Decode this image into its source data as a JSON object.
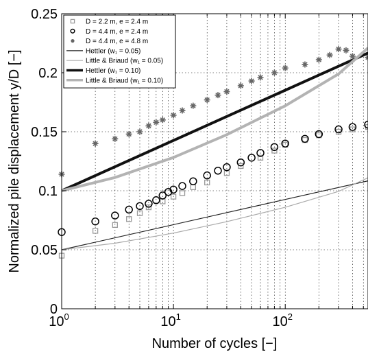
{
  "chart_data": {
    "type": "scatter",
    "xlabel": "Number of cycles [−]",
    "ylabel": "Normalized pile displacement y/D [−]",
    "xscale": "log",
    "xlim": [
      1,
      550
    ],
    "ylim": [
      0,
      0.25
    ],
    "grid": true,
    "legend_position": "top-left",
    "x_ticks": [
      {
        "value": 1,
        "base": "10",
        "exp": "0"
      },
      {
        "value": 10,
        "base": "10",
        "exp": "1"
      },
      {
        "value": 100,
        "base": "10",
        "exp": "2"
      }
    ],
    "y_ticks": [
      {
        "value": 0,
        "label": "0"
      },
      {
        "value": 0.05,
        "label": "0.05"
      },
      {
        "value": 0.1,
        "label": "0.1"
      },
      {
        "value": 0.15,
        "label": "0.15"
      },
      {
        "value": 0.2,
        "label": "0.2"
      },
      {
        "value": 0.25,
        "label": "0.25"
      }
    ],
    "series": [
      {
        "name": "D = 2.2 m, e = 2.4 m",
        "kind": "markers",
        "marker": "square",
        "color": "#999999",
        "points": [
          [
            1,
            0.045
          ],
          [
            2,
            0.066
          ],
          [
            3,
            0.071
          ],
          [
            4,
            0.076
          ],
          [
            5,
            0.081
          ],
          [
            6,
            0.086
          ],
          [
            8,
            0.091
          ],
          [
            10,
            0.095
          ],
          [
            12,
            0.098
          ],
          [
            15,
            0.103
          ],
          [
            20,
            0.107
          ],
          [
            30,
            0.115
          ],
          [
            40,
            0.121
          ],
          [
            60,
            0.128
          ],
          [
            80,
            0.134
          ],
          [
            100,
            0.139
          ],
          [
            150,
            0.143
          ],
          [
            200,
            0.147
          ],
          [
            300,
            0.15
          ],
          [
            400,
            0.152
          ],
          [
            550,
            0.154
          ]
        ]
      },
      {
        "name": "D = 4.4 m, e = 2.4 m",
        "kind": "markers",
        "marker": "circle",
        "color": "#000000",
        "points": [
          [
            1,
            0.065
          ],
          [
            2,
            0.074
          ],
          [
            3,
            0.079
          ],
          [
            4,
            0.084
          ],
          [
            5,
            0.087
          ],
          [
            6,
            0.089
          ],
          [
            7,
            0.092
          ],
          [
            8,
            0.096
          ],
          [
            9,
            0.099
          ],
          [
            10,
            0.101
          ],
          [
            12,
            0.104
          ],
          [
            15,
            0.108
          ],
          [
            20,
            0.113
          ],
          [
            25,
            0.117
          ],
          [
            30,
            0.12
          ],
          [
            40,
            0.124
          ],
          [
            50,
            0.128
          ],
          [
            60,
            0.132
          ],
          [
            80,
            0.137
          ],
          [
            100,
            0.14
          ],
          [
            150,
            0.144
          ],
          [
            200,
            0.148
          ],
          [
            300,
            0.152
          ],
          [
            400,
            0.154
          ],
          [
            550,
            0.156
          ]
        ]
      },
      {
        "name": "D = 4.4 m, e = 4.8 m",
        "kind": "markers",
        "marker": "asterisk",
        "color": "#666666",
        "points": [
          [
            1,
            0.114
          ],
          [
            2,
            0.14
          ],
          [
            3,
            0.144
          ],
          [
            4,
            0.148
          ],
          [
            5,
            0.15
          ],
          [
            6,
            0.155
          ],
          [
            7,
            0.158
          ],
          [
            8,
            0.16
          ],
          [
            10,
            0.164
          ],
          [
            12,
            0.168
          ],
          [
            15,
            0.172
          ],
          [
            20,
            0.177
          ],
          [
            25,
            0.181
          ],
          [
            30,
            0.184
          ],
          [
            40,
            0.189
          ],
          [
            50,
            0.193
          ],
          [
            60,
            0.196
          ],
          [
            80,
            0.2
          ],
          [
            100,
            0.204
          ],
          [
            150,
            0.207
          ],
          [
            200,
            0.211
          ],
          [
            250,
            0.215
          ],
          [
            300,
            0.22
          ],
          [
            350,
            0.219
          ],
          [
            400,
            0.214
          ],
          [
            550,
            0.213
          ]
        ]
      },
      {
        "name": "Hettler (w₁ = 0.05)",
        "kind": "line",
        "color": "#222222",
        "width": 1.2,
        "points": [
          [
            1,
            0.05
          ],
          [
            10,
            0.0713
          ],
          [
            100,
            0.0926
          ],
          [
            550,
            0.1084
          ]
        ]
      },
      {
        "name": "Little & Briaud (w₁ = 0.05)",
        "kind": "line",
        "color": "#aaaaaa",
        "width": 1.2,
        "points": [
          [
            1,
            0.05
          ],
          [
            3,
            0.0555
          ],
          [
            10,
            0.0641
          ],
          [
            30,
            0.0738
          ],
          [
            100,
            0.086
          ],
          [
            300,
            0.0995
          ],
          [
            550,
            0.111
          ]
        ]
      },
      {
        "name": "Hettler (w₁ = 0.10)",
        "kind": "line",
        "color": "#111111",
        "width": 4,
        "points": [
          [
            1,
            0.1
          ],
          [
            10,
            0.1426
          ],
          [
            100,
            0.1852
          ],
          [
            550,
            0.2167
          ]
        ]
      },
      {
        "name": "Little & Briaud (w₁ = 0.10)",
        "kind": "line",
        "color": "#b3b3b3",
        "width": 4,
        "points": [
          [
            1,
            0.1
          ],
          [
            3,
            0.1112
          ],
          [
            10,
            0.1282
          ],
          [
            30,
            0.1475
          ],
          [
            100,
            0.172
          ],
          [
            300,
            0.199
          ],
          [
            550,
            0.221
          ]
        ]
      }
    ]
  }
}
